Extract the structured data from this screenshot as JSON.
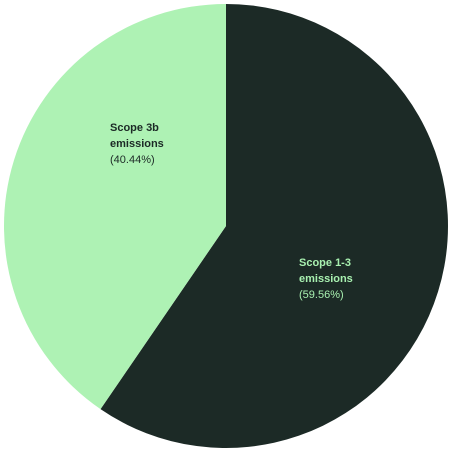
{
  "chart_data": {
    "type": "pie",
    "slices": [
      {
        "label": "Scope 1-3 emissions",
        "percent_label": "(59.56%)",
        "value": 59.56,
        "color": "#1c2a26",
        "text_color": "#a8f0b0"
      },
      {
        "label": "Scope 3b emissions",
        "percent_label": "(40.44%)",
        "value": 40.44,
        "color": "#aef2b4",
        "text_color": "#1c2a26"
      }
    ],
    "start": "12 o'clock, clockwise"
  }
}
